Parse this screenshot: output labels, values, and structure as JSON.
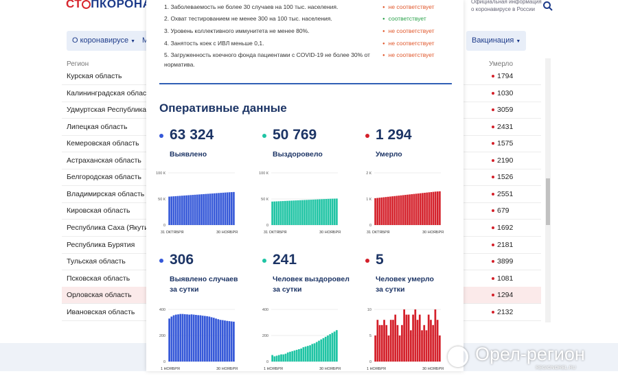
{
  "header": {
    "logo": [
      "СТ",
      "ПКОРОНАВИ"
    ],
    "tagline": [
      "Официальная информация",
      "о коронавирусе в России"
    ]
  },
  "nav": [
    "О коронавирусе",
    "М",
    "Вакцинация"
  ],
  "table": {
    "columns": [
      "Регион",
      "Умерло"
    ],
    "rows": [
      {
        "name": "Курская область",
        "deaths": 1794
      },
      {
        "name": "Калининградская область",
        "deaths": 1030
      },
      {
        "name": "Удмуртская Республика",
        "deaths": 3059
      },
      {
        "name": "Липецкая область",
        "deaths": 2431
      },
      {
        "name": "Кемеровская область",
        "deaths": 1575
      },
      {
        "name": "Астраханская область",
        "deaths": 2190
      },
      {
        "name": "Белгородская область",
        "deaths": 1526
      },
      {
        "name": "Владимирская область",
        "deaths": 2551
      },
      {
        "name": "Кировская область",
        "deaths": 679
      },
      {
        "name": "Республика Саха (Якутия)",
        "deaths": 1692
      },
      {
        "name": "Республика Бурятия",
        "deaths": 2181
      },
      {
        "name": "Тульская область",
        "deaths": 3899
      },
      {
        "name": "Псковская область",
        "deaths": 1081
      },
      {
        "name": "Орловская область",
        "deaths": 1294,
        "highlighted": true
      },
      {
        "name": "Ивановская область",
        "deaths": 2132
      }
    ]
  },
  "criteria": [
    {
      "text": "1. Заболеваемость не более 30 случаев на 100 тыс. населения.",
      "status": "не соответствует",
      "ok": false
    },
    {
      "text": "2. Охват тестированием не менее 300 на 100 тыс. населения.",
      "status": "соответствует",
      "ok": true
    },
    {
      "text": "3. Уровень коллективного иммунитета не менее 80%.",
      "status": "не соответствует",
      "ok": false
    },
    {
      "text": "4. Занятость коек с ИВЛ меньше 0,1.",
      "status": "не соответствует",
      "ok": false
    },
    {
      "text": "5. Загруженность коечного фонда пациентами с COVID-19 не более 30% от норматива.",
      "status": "не соответствует",
      "ok": false
    }
  ],
  "operational": {
    "title": "Оперативные данные",
    "cards": [
      {
        "value": "63 324",
        "label": [
          "Выявлено"
        ],
        "color": "#3558d8",
        "chart": {
          "type": "bar",
          "x_labels": [
            "31 ОКТЯБРЯ",
            "30 НОЯБРЯ"
          ],
          "ylim": [
            0,
            100000
          ],
          "yticks": [
            0,
            {
              "value": 50000,
              "label": "50 К"
            },
            {
              "value": 100000,
              "label": "100 К"
            }
          ],
          "values": [
            54500,
            54800,
            55100,
            55400,
            55700,
            56000,
            56300,
            56600,
            56900,
            57200,
            57500,
            57800,
            58100,
            58400,
            58700,
            59000,
            59300,
            59600,
            59900,
            60200,
            60500,
            60800,
            61100,
            61400,
            61700,
            62000,
            62300,
            62600,
            62850,
            63100,
            63324
          ]
        }
      },
      {
        "value": "50 769",
        "label": [
          "Выздоровело"
        ],
        "color": "#1fc4a4",
        "chart": {
          "type": "bar",
          "x_labels": [
            "31 ОКТЯБРЯ",
            "30 НОЯБРЯ"
          ],
          "ylim": [
            0,
            100000
          ],
          "yticks": [
            0,
            {
              "value": 50000,
              "label": "50 К"
            },
            {
              "value": 100000,
              "label": "100 К"
            }
          ],
          "values": [
            45000,
            45200,
            45400,
            45600,
            45800,
            46000,
            46200,
            46400,
            46600,
            46800,
            47000,
            47200,
            47400,
            47600,
            47800,
            48000,
            48200,
            48400,
            48600,
            48800,
            49000,
            49200,
            49400,
            49600,
            49800,
            50000,
            50200,
            50400,
            50550,
            50650,
            50769
          ]
        }
      },
      {
        "value": "1 294",
        "label": [
          "Умерло"
        ],
        "color": "#d4202a",
        "chart": {
          "type": "bar",
          "x_labels": [
            "31 ОКТЯБРЯ",
            "30 НОЯБРЯ"
          ],
          "ylim": [
            0,
            2000
          ],
          "yticks": [
            0,
            {
              "value": 1000,
              "label": "1 К"
            },
            {
              "value": 2000,
              "label": "2 К"
            }
          ],
          "values": [
            1030,
            1039,
            1048,
            1057,
            1066,
            1075,
            1084,
            1093,
            1102,
            1111,
            1120,
            1129,
            1138,
            1147,
            1156,
            1165,
            1174,
            1183,
            1192,
            1201,
            1210,
            1219,
            1228,
            1237,
            1246,
            1255,
            1264,
            1273,
            1282,
            1288,
            1294
          ]
        }
      },
      {
        "value": "306",
        "label": [
          "Выявлено случаев",
          "за сутки"
        ],
        "color": "#3558d8",
        "chart": {
          "type": "bar",
          "x_labels": [
            "1 НОЯБРЯ",
            "30 НОЯБРЯ"
          ],
          "ylim": [
            0,
            400
          ],
          "yticks": [
            0,
            200,
            400
          ],
          "values": [
            330,
            345,
            355,
            360,
            362,
            365,
            365,
            363,
            362,
            360,
            362,
            360,
            358,
            356,
            355,
            352,
            350,
            348,
            345,
            340,
            336,
            330,
            325,
            320,
            318,
            315,
            312,
            310,
            308,
            306
          ]
        }
      },
      {
        "value": "241",
        "label": [
          "Человек выздоровел",
          "за сутки"
        ],
        "color": "#1fc4a4",
        "chart": {
          "type": "bar",
          "x_labels": [
            "1 НОЯБРЯ",
            "30 НОЯБРЯ"
          ],
          "ylim": [
            0,
            400
          ],
          "yticks": [
            0,
            200,
            400
          ],
          "values": [
            50,
            40,
            45,
            50,
            55,
            55,
            60,
            70,
            75,
            80,
            85,
            90,
            95,
            100,
            110,
            115,
            120,
            125,
            135,
            140,
            150,
            160,
            170,
            180,
            190,
            200,
            210,
            220,
            230,
            241
          ]
        }
      },
      {
        "value": "5",
        "label": [
          "Человек умерло",
          "за сутки"
        ],
        "color": "#d4202a",
        "chart": {
          "type": "bar",
          "x_labels": [
            "1 НОЯБРЯ",
            "30 НОЯБРЯ"
          ],
          "ylim": [
            0,
            10
          ],
          "yticks": [
            0,
            5,
            10
          ],
          "values": [
            5,
            8,
            7,
            7,
            8,
            7,
            5,
            8,
            8,
            9,
            7,
            5,
            7,
            10,
            9,
            9,
            6,
            9,
            10,
            8,
            9,
            6,
            7,
            6,
            9,
            8,
            7,
            10,
            8,
            5
          ]
        }
      }
    ]
  },
  "watermark": {
    "name": "Орел-регион",
    "site": "REGIONOREL.RU"
  }
}
